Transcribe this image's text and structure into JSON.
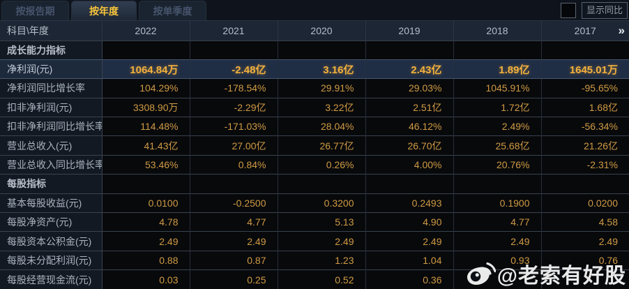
{
  "tabs": [
    {
      "label": "按报告期",
      "active": false
    },
    {
      "label": "按年度",
      "active": true
    },
    {
      "label": "按单季度",
      "active": false
    }
  ],
  "controls": {
    "yoy_label": "显示同比",
    "checkbox_checked": false
  },
  "table": {
    "corner": "科目\\年度",
    "years": [
      "2022",
      "2021",
      "2020",
      "2019",
      "2018",
      "2017"
    ],
    "more": "»",
    "rows": [
      {
        "type": "section",
        "label": "成长能力指标",
        "values": [
          "",
          "",
          "",
          "",
          "",
          ""
        ]
      },
      {
        "type": "data",
        "highlight": true,
        "label": "净利润(元)",
        "values": [
          "1064.84万",
          "-2.48亿",
          "3.16亿",
          "2.43亿",
          "1.89亿",
          "1645.01万"
        ]
      },
      {
        "type": "data",
        "label": "净利润同比增长率",
        "values": [
          "104.29%",
          "-178.54%",
          "29.91%",
          "29.03%",
          "1045.91%",
          "-95.65%"
        ]
      },
      {
        "type": "data",
        "label": "扣非净利润(元)",
        "values": [
          "3308.90万",
          "-2.29亿",
          "3.22亿",
          "2.51亿",
          "1.72亿",
          "1.68亿"
        ]
      },
      {
        "type": "data",
        "label": "扣非净利润同比增长率",
        "values": [
          "114.48%",
          "-171.03%",
          "28.04%",
          "46.12%",
          "2.49%",
          "-56.34%"
        ]
      },
      {
        "type": "data",
        "label": "营业总收入(元)",
        "values": [
          "41.43亿",
          "27.00亿",
          "26.77亿",
          "26.70亿",
          "25.68亿",
          "21.26亿"
        ]
      },
      {
        "type": "data",
        "label": "营业总收入同比增长率",
        "values": [
          "53.46%",
          "0.84%",
          "0.26%",
          "4.00%",
          "20.76%",
          "-2.31%"
        ]
      },
      {
        "type": "section",
        "label": "每股指标",
        "values": [
          "",
          "",
          "",
          "",
          "",
          ""
        ]
      },
      {
        "type": "data",
        "label": "基本每股收益(元)",
        "values": [
          "0.0100",
          "-0.2500",
          "0.3200",
          "0.2493",
          "0.1900",
          "0.0200"
        ]
      },
      {
        "type": "data",
        "label": "每股净资产(元)",
        "values": [
          "4.78",
          "4.77",
          "5.13",
          "4.90",
          "4.77",
          "4.58"
        ]
      },
      {
        "type": "data",
        "label": "每股资本公积金(元)",
        "values": [
          "2.49",
          "2.49",
          "2.49",
          "2.49",
          "2.49",
          "2.49"
        ]
      },
      {
        "type": "data",
        "label": "每股未分配利润(元)",
        "values": [
          "0.88",
          "0.87",
          "1.23",
          "1.04",
          "0.93",
          "0.76"
        ]
      },
      {
        "type": "data",
        "label": "每股经营现金流(元)",
        "values": [
          "0.03",
          "0.25",
          "0.52",
          "0.36",
          "",
          ""
        ]
      }
    ]
  },
  "watermark": {
    "handle": "@老索有好股",
    "logo": "weibo-icon"
  },
  "colors": {
    "accent_gold": "#f7c53b",
    "value_orange": "#d09b44",
    "highlight_row_bg": "#1f2d45",
    "header_bg": "#1c2634",
    "label_cell_bg": "#121923",
    "value_cell_bg": "#08090b"
  }
}
